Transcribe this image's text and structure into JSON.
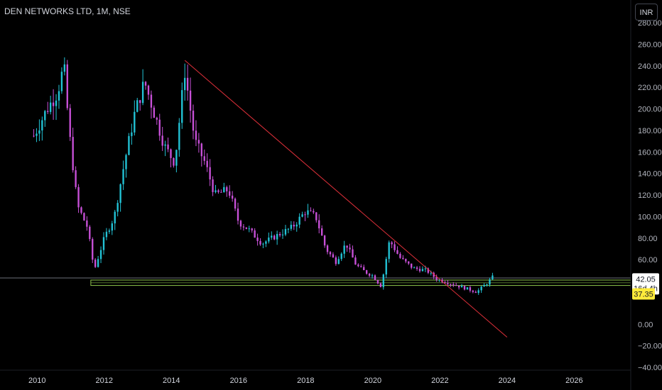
{
  "header": {
    "symbol": "DEN NETWORKS LTD, 1M, NSE",
    "currency_button": "INR"
  },
  "colors": {
    "up": "#22c3d6",
    "down": "#c850d8",
    "trendline": "#e0303a",
    "zone": "#8bc34a",
    "price_tag": "#ffffff",
    "support_tag": "#ffeb3b"
  },
  "chart_data": {
    "type": "candlestick",
    "title": "DEN NETWORKS LTD, 1M, NSE",
    "currency": "INR",
    "y_range": [
      -40,
      280
    ],
    "x_range": [
      2009.0,
      2027.6
    ],
    "y_ticks": [
      "280.00",
      "260.00",
      "240.00",
      "220.00",
      "200.00",
      "180.00",
      "160.00",
      "140.00",
      "120.00",
      "100.00",
      "80.00",
      "60.00",
      "",
      "",
      "0.00",
      "−20.00",
      "−40.00"
    ],
    "x_ticks": [
      "2010",
      "2012",
      "2014",
      "2016",
      "2018",
      "2020",
      "2022",
      "2024",
      "2026"
    ],
    "x_tick_years": [
      2010,
      2012,
      2014,
      2016,
      2018,
      2020,
      2022,
      2024,
      2026
    ],
    "current_price": "42.05",
    "countdown": "16d 4h",
    "support_level_label": "37.35",
    "support_zone": [
      36,
      41
    ],
    "horizontal_line": 43,
    "trendline": {
      "start": [
        2014.4,
        245
      ],
      "end": [
        2024.0,
        -12
      ]
    },
    "keyframes": [
      [
        2009.9,
        175
      ],
      [
        2010.3,
        200
      ],
      [
        2010.6,
        215
      ],
      [
        2010.8,
        240
      ],
      [
        2010.95,
        180
      ],
      [
        2011.2,
        110
      ],
      [
        2011.5,
        90
      ],
      [
        2011.7,
        50
      ],
      [
        2012.0,
        80
      ],
      [
        2012.3,
        100
      ],
      [
        2012.6,
        150
      ],
      [
        2012.9,
        195
      ],
      [
        2013.2,
        225
      ],
      [
        2013.5,
        195
      ],
      [
        2013.8,
        165
      ],
      [
        2014.1,
        150
      ],
      [
        2014.4,
        235
      ],
      [
        2014.7,
        170
      ],
      [
        2015.0,
        150
      ],
      [
        2015.3,
        120
      ],
      [
        2015.7,
        125
      ],
      [
        2016.0,
        95
      ],
      [
        2016.3,
        88
      ],
      [
        2016.7,
        75
      ],
      [
        2017.0,
        80
      ],
      [
        2017.3,
        85
      ],
      [
        2017.6,
        90
      ],
      [
        2018.0,
        105
      ],
      [
        2018.3,
        100
      ],
      [
        2018.6,
        70
      ],
      [
        2018.9,
        58
      ],
      [
        2019.2,
        75
      ],
      [
        2019.5,
        55
      ],
      [
        2019.8,
        48
      ],
      [
        2020.0,
        45
      ],
      [
        2020.25,
        35
      ],
      [
        2020.5,
        78
      ],
      [
        2020.8,
        62
      ],
      [
        2021.2,
        52
      ],
      [
        2021.6,
        50
      ],
      [
        2021.9,
        42
      ],
      [
        2022.3,
        38
      ],
      [
        2022.7,
        34
      ],
      [
        2023.1,
        30
      ],
      [
        2023.4,
        38
      ],
      [
        2023.6,
        45
      ]
    ]
  }
}
